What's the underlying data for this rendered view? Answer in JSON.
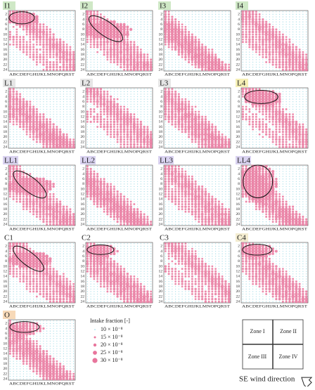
{
  "panels": [
    {
      "label": "I1"
    },
    {
      "label": "I2"
    },
    {
      "label": "I3"
    },
    {
      "label": "I4"
    },
    {
      "label": "L1"
    },
    {
      "label": "L2"
    },
    {
      "label": "L3"
    },
    {
      "label": "L4"
    },
    {
      "label": "LL1"
    },
    {
      "label": "LL2"
    },
    {
      "label": "LL3"
    },
    {
      "label": "LL4"
    },
    {
      "label": "C1"
    },
    {
      "label": "C2"
    },
    {
      "label": "C3"
    },
    {
      "label": "C4"
    },
    {
      "label": "O"
    }
  ],
  "column_labels": "ABCDEFGHIJKLMNOPQRST",
  "row_ticks": [
    2,
    4,
    6,
    8,
    10,
    12,
    14,
    16,
    18,
    20,
    22,
    24
  ],
  "legend": {
    "title": "Intake fraction [-]",
    "entries": [
      "10 × 10⁻⁸",
      "15 × 10⁻⁸",
      "20 × 10⁻⁸",
      "25 × 10⁻⁸",
      "30 × 10⁻⁸"
    ]
  },
  "zones": [
    "Zone I",
    "Zone II",
    "Zone III",
    "Zone IV"
  ],
  "wind_label": "SE wind direction"
}
